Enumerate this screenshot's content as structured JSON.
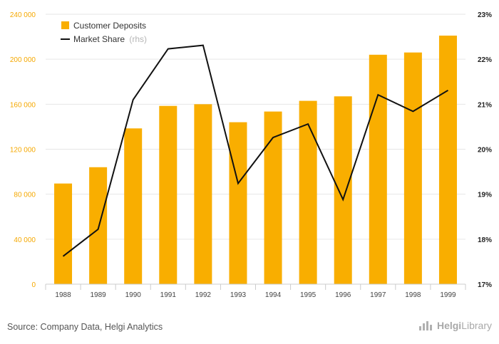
{
  "chart_data": {
    "type": "bar+line",
    "categories": [
      "1988",
      "1989",
      "1990",
      "1991",
      "1992",
      "1993",
      "1994",
      "1995",
      "1996",
      "1997",
      "1998",
      "1999"
    ],
    "series": [
      {
        "name": "Customer Deposits",
        "type": "bar",
        "axis": "left",
        "values": [
          89500,
          104000,
          138500,
          158500,
          160000,
          144000,
          153500,
          163000,
          167000,
          204000,
          206000,
          221000
        ]
      },
      {
        "name": "Market Share",
        "name_note": "(rhs)",
        "type": "line",
        "axis": "right",
        "values": [
          17.62,
          18.22,
          21.1,
          22.23,
          22.31,
          19.24,
          20.26,
          20.56,
          18.88,
          21.21,
          20.84,
          21.31
        ]
      }
    ],
    "left_axis": {
      "ylim": [
        0,
        240000
      ],
      "ticks": [
        0,
        40000,
        80000,
        120000,
        160000,
        200000,
        240000
      ],
      "tick_labels": [
        "0",
        "40 000",
        "80 000",
        "120 000",
        "160 000",
        "200 000",
        "240 000"
      ]
    },
    "right_axis": {
      "ylim": [
        17,
        23
      ],
      "ticks": [
        17,
        18,
        19,
        20,
        21,
        22,
        23
      ],
      "tick_labels": [
        "17%",
        "18%",
        "19%",
        "20%",
        "21%",
        "22%",
        "23%"
      ]
    },
    "title": "",
    "xlabel": "",
    "ylabel": "",
    "grid": "horizontal",
    "legend": "top-left",
    "colors": {
      "bar": "#f9ae00",
      "line": "#111111",
      "left_ticks": "#f5a800",
      "grid": "#e6e6e6"
    }
  },
  "footer": {
    "source": "Source: Company Data, Helgi Analytics",
    "brand_bold": "Helgi",
    "brand_light": "Library",
    "brand_icon": "bar-chart-icon"
  }
}
